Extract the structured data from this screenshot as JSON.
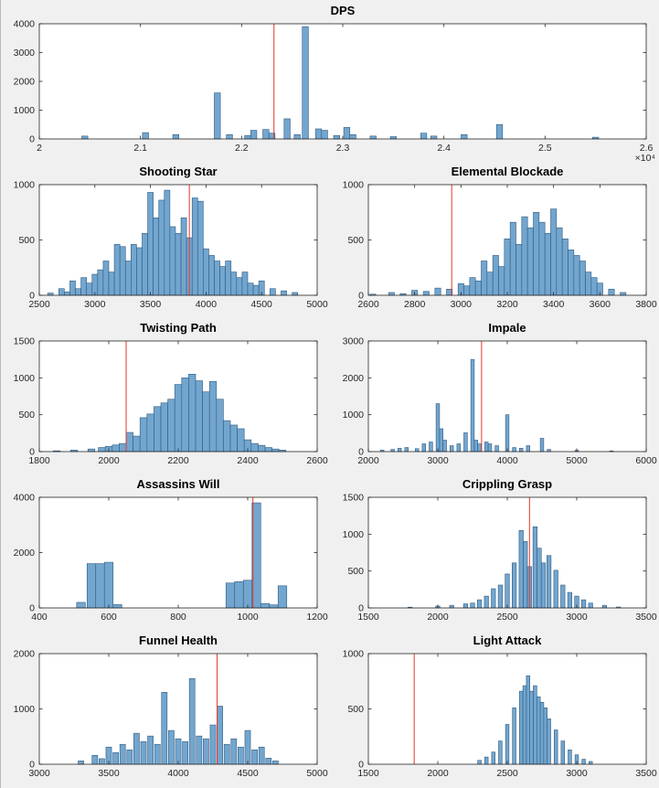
{
  "figure": {
    "background": "#f0f0f0",
    "axes_background": "#ffffff",
    "axes_color": "#262626",
    "tick_label_color": "#262626",
    "bar_face": "#72a6cf",
    "bar_edge": "#31597f",
    "vline_color": "#e53528",
    "title_color": "#000000",
    "grid": "off",
    "legend": "none"
  },
  "chart_data": [
    {
      "id": "dps",
      "type": "bar",
      "title": "DPS",
      "xlim": [
        20000,
        26000
      ],
      "ylim": [
        0,
        4000
      ],
      "x_ticks": [
        20000,
        21000,
        22000,
        23000,
        24000,
        25000,
        26000
      ],
      "x_tick_labels": [
        "2",
        "2.1",
        "2.2",
        "2.3",
        "2.4",
        "2.5",
        "2.6"
      ],
      "y_ticks": [
        0,
        1000,
        2000,
        3000,
        4000
      ],
      "x_scale_label": "×10⁴",
      "bin_width": 60,
      "red_line_x": 22320,
      "bars": [
        [
          20450,
          100
        ],
        [
          21050,
          220
        ],
        [
          21350,
          150
        ],
        [
          21760,
          1600
        ],
        [
          21880,
          150
        ],
        [
          22060,
          120
        ],
        [
          22120,
          300
        ],
        [
          22240,
          330
        ],
        [
          22300,
          200
        ],
        [
          22450,
          700
        ],
        [
          22550,
          150
        ],
        [
          22630,
          3900
        ],
        [
          22760,
          350
        ],
        [
          22820,
          300
        ],
        [
          22940,
          120
        ],
        [
          23040,
          400
        ],
        [
          23100,
          150
        ],
        [
          23300,
          100
        ],
        [
          23500,
          80
        ],
        [
          23800,
          200
        ],
        [
          23900,
          100
        ],
        [
          24200,
          150
        ],
        [
          24550,
          500
        ],
        [
          25500,
          60
        ]
      ]
    },
    {
      "id": "shooting-star",
      "type": "bar",
      "title": "Shooting Star",
      "xlim": [
        2500,
        5000
      ],
      "ylim": [
        0,
        1000
      ],
      "x_ticks": [
        2500,
        3000,
        3500,
        4000,
        4500,
        5000
      ],
      "x_tick_labels": [
        "2500",
        "3000",
        "3500",
        "4000",
        "4500",
        "5000"
      ],
      "y_ticks": [
        0,
        500,
        1000
      ],
      "bin_width": 50,
      "red_line_x": 3850,
      "bars": [
        [
          2600,
          20
        ],
        [
          2700,
          60
        ],
        [
          2750,
          30
        ],
        [
          2800,
          130
        ],
        [
          2850,
          60
        ],
        [
          2900,
          160
        ],
        [
          2950,
          110
        ],
        [
          3000,
          190
        ],
        [
          3050,
          230
        ],
        [
          3100,
          310
        ],
        [
          3150,
          210
        ],
        [
          3200,
          460
        ],
        [
          3250,
          440
        ],
        [
          3300,
          310
        ],
        [
          3350,
          460
        ],
        [
          3400,
          430
        ],
        [
          3450,
          560
        ],
        [
          3500,
          930
        ],
        [
          3550,
          700
        ],
        [
          3600,
          860
        ],
        [
          3650,
          950
        ],
        [
          3700,
          620
        ],
        [
          3750,
          560
        ],
        [
          3800,
          700
        ],
        [
          3850,
          520
        ],
        [
          3900,
          880
        ],
        [
          3950,
          850
        ],
        [
          4000,
          420
        ],
        [
          4050,
          360
        ],
        [
          4100,
          310
        ],
        [
          4150,
          260
        ],
        [
          4200,
          310
        ],
        [
          4250,
          210
        ],
        [
          4300,
          160
        ],
        [
          4350,
          210
        ],
        [
          4400,
          110
        ],
        [
          4450,
          90
        ],
        [
          4500,
          130
        ],
        [
          4600,
          60
        ],
        [
          4700,
          40
        ],
        [
          4800,
          25
        ]
      ]
    },
    {
      "id": "elemental-blockade",
      "type": "bar",
      "title": "Elemental Blockade",
      "xlim": [
        2600,
        3800
      ],
      "ylim": [
        0,
        1000
      ],
      "x_ticks": [
        2600,
        2800,
        3000,
        3200,
        3400,
        3600,
        3800
      ],
      "x_tick_labels": [
        "2600",
        "2800",
        "3000",
        "3200",
        "3400",
        "3600",
        "3800"
      ],
      "y_ticks": [
        0,
        500,
        1000
      ],
      "bin_width": 25,
      "red_line_x": 2960,
      "bars": [
        [
          2620,
          10
        ],
        [
          2700,
          25
        ],
        [
          2750,
          15
        ],
        [
          2800,
          45
        ],
        [
          2850,
          35
        ],
        [
          2900,
          65
        ],
        [
          2950,
          55
        ],
        [
          3000,
          105
        ],
        [
          3025,
          85
        ],
        [
          3050,
          160
        ],
        [
          3075,
          130
        ],
        [
          3100,
          310
        ],
        [
          3125,
          210
        ],
        [
          3150,
          360
        ],
        [
          3175,
          260
        ],
        [
          3200,
          510
        ],
        [
          3225,
          660
        ],
        [
          3250,
          460
        ],
        [
          3275,
          710
        ],
        [
          3300,
          610
        ],
        [
          3325,
          750
        ],
        [
          3350,
          660
        ],
        [
          3375,
          560
        ],
        [
          3400,
          780
        ],
        [
          3425,
          610
        ],
        [
          3450,
          510
        ],
        [
          3475,
          410
        ],
        [
          3500,
          360
        ],
        [
          3525,
          310
        ],
        [
          3550,
          210
        ],
        [
          3575,
          160
        ],
        [
          3600,
          110
        ],
        [
          3650,
          55
        ],
        [
          3700,
          25
        ]
      ]
    },
    {
      "id": "twisting-path",
      "type": "bar",
      "title": "Twisting Path",
      "xlim": [
        1800,
        2600
      ],
      "ylim": [
        0,
        1500
      ],
      "x_ticks": [
        1800,
        2000,
        2200,
        2400,
        2600
      ],
      "x_tick_labels": [
        "1800",
        "2000",
        "2200",
        "2400",
        "2600"
      ],
      "y_ticks": [
        0,
        500,
        1000,
        1500
      ],
      "bin_width": 20,
      "red_line_x": 2050,
      "bars": [
        [
          1850,
          10
        ],
        [
          1900,
          20
        ],
        [
          1950,
          35
        ],
        [
          1980,
          55
        ],
        [
          2000,
          70
        ],
        [
          2020,
          90
        ],
        [
          2040,
          110
        ],
        [
          2060,
          260
        ],
        [
          2080,
          210
        ],
        [
          2100,
          460
        ],
        [
          2120,
          510
        ],
        [
          2140,
          610
        ],
        [
          2160,
          660
        ],
        [
          2180,
          710
        ],
        [
          2200,
          910
        ],
        [
          2220,
          1000
        ],
        [
          2240,
          1050
        ],
        [
          2260,
          960
        ],
        [
          2280,
          810
        ],
        [
          2300,
          950
        ],
        [
          2320,
          710
        ],
        [
          2340,
          420
        ],
        [
          2360,
          360
        ],
        [
          2380,
          310
        ],
        [
          2400,
          160
        ],
        [
          2420,
          110
        ],
        [
          2440,
          85
        ],
        [
          2460,
          55
        ],
        [
          2480,
          35
        ],
        [
          2500,
          20
        ]
      ]
    },
    {
      "id": "impale",
      "type": "bar",
      "title": "Impale",
      "xlim": [
        2000,
        6000
      ],
      "ylim": [
        0,
        3000
      ],
      "x_ticks": [
        2000,
        3000,
        4000,
        5000,
        6000
      ],
      "x_tick_labels": [
        "2000",
        "3000",
        "4000",
        "5000",
        "6000"
      ],
      "y_ticks": [
        0,
        1000,
        2000,
        3000
      ],
      "bin_width": 50,
      "red_line_x": 3630,
      "bars": [
        [
          2200,
          40
        ],
        [
          2350,
          60
        ],
        [
          2450,
          90
        ],
        [
          2550,
          110
        ],
        [
          2700,
          80
        ],
        [
          2800,
          210
        ],
        [
          2900,
          260
        ],
        [
          3000,
          1300
        ],
        [
          3050,
          620
        ],
        [
          3100,
          310
        ],
        [
          3200,
          160
        ],
        [
          3300,
          210
        ],
        [
          3400,
          510
        ],
        [
          3500,
          2500
        ],
        [
          3550,
          310
        ],
        [
          3600,
          210
        ],
        [
          3700,
          260
        ],
        [
          3750,
          210
        ],
        [
          3850,
          160
        ],
        [
          4000,
          1000
        ],
        [
          4100,
          110
        ],
        [
          4200,
          90
        ],
        [
          4300,
          160
        ],
        [
          4500,
          360
        ],
        [
          4600,
          60
        ],
        [
          5000,
          35
        ],
        [
          5500,
          20
        ]
      ]
    },
    {
      "id": "assassins-will",
      "type": "bar",
      "title": "Assassins Will",
      "xlim": [
        400,
        1200
      ],
      "ylim": [
        0,
        4000
      ],
      "x_ticks": [
        400,
        600,
        800,
        1000,
        1200
      ],
      "x_tick_labels": [
        "400",
        "600",
        "800",
        "1000",
        "1200"
      ],
      "y_ticks": [
        0,
        2000,
        4000
      ],
      "bin_width": 25,
      "red_line_x": 1015,
      "bars": [
        [
          520,
          200
        ],
        [
          550,
          1600
        ],
        [
          575,
          1600
        ],
        [
          600,
          1650
        ],
        [
          625,
          120
        ],
        [
          950,
          900
        ],
        [
          975,
          950
        ],
        [
          1000,
          1000
        ],
        [
          1025,
          3800
        ],
        [
          1050,
          160
        ],
        [
          1075,
          110
        ],
        [
          1100,
          800
        ]
      ]
    },
    {
      "id": "crippling-grasp",
      "type": "bar",
      "title": "Crippling Grasp",
      "xlim": [
        1500,
        3500
      ],
      "ylim": [
        0,
        1500
      ],
      "x_ticks": [
        1500,
        2000,
        2500,
        3000,
        3500
      ],
      "x_tick_labels": [
        "1500",
        "2000",
        "2500",
        "3000",
        "3500"
      ],
      "y_ticks": [
        0,
        500,
        1000,
        1500
      ],
      "bin_width": 30,
      "red_line_x": 2660,
      "bars": [
        [
          1800,
          10
        ],
        [
          2000,
          25
        ],
        [
          2100,
          35
        ],
        [
          2200,
          55
        ],
        [
          2250,
          65
        ],
        [
          2300,
          110
        ],
        [
          2350,
          160
        ],
        [
          2400,
          260
        ],
        [
          2450,
          310
        ],
        [
          2500,
          460
        ],
        [
          2550,
          610
        ],
        [
          2600,
          1050
        ],
        [
          2630,
          900
        ],
        [
          2660,
          560
        ],
        [
          2700,
          1100
        ],
        [
          2730,
          810
        ],
        [
          2760,
          610
        ],
        [
          2800,
          710
        ],
        [
          2850,
          510
        ],
        [
          2900,
          310
        ],
        [
          2950,
          210
        ],
        [
          3000,
          160
        ],
        [
          3050,
          110
        ],
        [
          3100,
          65
        ],
        [
          3200,
          35
        ],
        [
          3300,
          12
        ]
      ]
    },
    {
      "id": "funnel-health",
      "type": "bar",
      "title": "Funnel Health",
      "xlim": [
        3000,
        5000
      ],
      "ylim": [
        0,
        2000
      ],
      "x_ticks": [
        3000,
        3500,
        4000,
        4500,
        5000
      ],
      "x_tick_labels": [
        "3000",
        "3500",
        "4000",
        "4500",
        "5000"
      ],
      "y_ticks": [
        0,
        1000,
        2000
      ],
      "bin_width": 40,
      "red_line_x": 4280,
      "bars": [
        [
          3300,
          60
        ],
        [
          3400,
          160
        ],
        [
          3450,
          100
        ],
        [
          3500,
          310
        ],
        [
          3550,
          210
        ],
        [
          3600,
          360
        ],
        [
          3650,
          260
        ],
        [
          3700,
          560
        ],
        [
          3750,
          410
        ],
        [
          3800,
          510
        ],
        [
          3850,
          360
        ],
        [
          3900,
          1300
        ],
        [
          3950,
          610
        ],
        [
          4000,
          460
        ],
        [
          4050,
          410
        ],
        [
          4100,
          1550
        ],
        [
          4150,
          510
        ],
        [
          4200,
          460
        ],
        [
          4250,
          710
        ],
        [
          4300,
          1050
        ],
        [
          4350,
          360
        ],
        [
          4400,
          460
        ],
        [
          4450,
          310
        ],
        [
          4500,
          610
        ],
        [
          4550,
          260
        ],
        [
          4600,
          310
        ],
        [
          4650,
          110
        ],
        [
          4700,
          60
        ]
      ]
    },
    {
      "id": "light-attack",
      "type": "bar",
      "title": "Light Attack",
      "xlim": [
        1500,
        3500
      ],
      "ylim": [
        0,
        1000
      ],
      "x_ticks": [
        1500,
        2000,
        2500,
        3000,
        3500
      ],
      "x_tick_labels": [
        "1500",
        "2000",
        "2500",
        "3000",
        "3500"
      ],
      "y_ticks": [
        0,
        500,
        1000
      ],
      "bin_width": 25,
      "red_line_x": 1830,
      "bars": [
        [
          2300,
          35
        ],
        [
          2350,
          65
        ],
        [
          2400,
          110
        ],
        [
          2450,
          210
        ],
        [
          2500,
          360
        ],
        [
          2550,
          510
        ],
        [
          2600,
          660
        ],
        [
          2625,
          710
        ],
        [
          2650,
          800
        ],
        [
          2675,
          660
        ],
        [
          2700,
          710
        ],
        [
          2725,
          610
        ],
        [
          2750,
          560
        ],
        [
          2775,
          510
        ],
        [
          2800,
          410
        ],
        [
          2850,
          310
        ],
        [
          2900,
          210
        ],
        [
          2950,
          130
        ],
        [
          3000,
          85
        ],
        [
          3050,
          45
        ],
        [
          3100,
          25
        ]
      ]
    }
  ]
}
